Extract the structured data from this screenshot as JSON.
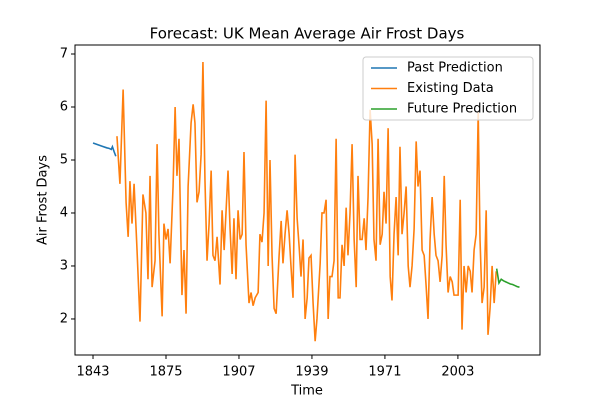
{
  "chart_data": {
    "type": "line",
    "title": "Forecast: UK Mean Average Air Frost Days",
    "xlabel": "Time",
    "ylabel": "Air Frost Days",
    "xlim": [
      1835.1,
      2039
    ],
    "ylim": [
      1.32,
      7.17
    ],
    "xticks": [
      1843,
      1875,
      1907,
      1939,
      1971,
      2003
    ],
    "yticks": [
      2,
      3,
      4,
      5,
      6,
      7
    ],
    "legend": "upper right",
    "series": [
      {
        "name": "Past Prediction",
        "color": "#1f77b4",
        "x": [
          1843,
          1845,
          1847,
          1849,
          1850,
          1851,
          1851.5,
          1852.3,
          1853
        ],
        "values": [
          5.32,
          5.29,
          5.26,
          5.23,
          5.22,
          5.2,
          5.25,
          5.15,
          5.07
        ]
      },
      {
        "name": "Existing Data",
        "color": "#ff7f0e",
        "x": [
          1853.5,
          1854.8,
          1856.2,
          1857.5,
          1858.4,
          1859.2,
          1860.1,
          1861.0,
          1862.3,
          1863.6,
          1864.9,
          1866.2,
          1867.1,
          1868.0,
          1868.9,
          1870.2,
          1871.1,
          1871.9,
          1873.3,
          1874.1,
          1875.0,
          1875.9,
          1876.8,
          1878.1,
          1879.0,
          1879.8,
          1880.7,
          1882.0,
          1882.9,
          1883.8,
          1884.7,
          1886.0,
          1886.9,
          1887.7,
          1888.6,
          1889.5,
          1890.4,
          1891.2,
          1892.1,
          1893.0,
          1893.9,
          1894.8,
          1895.6,
          1896.5,
          1897.4,
          1898.7,
          1899.6,
          1900.5,
          1901.3,
          1902.2,
          1903.1,
          1904.0,
          1904.8,
          1905.7,
          1906.6,
          1907.5,
          1908.4,
          1909.2,
          1910.1,
          1911.4,
          1912.3,
          1913.2,
          1914.1,
          1915.4,
          1916.2,
          1917.1,
          1918.0,
          1918.9,
          1919.8,
          1920.6,
          1921.5,
          1922.4,
          1923.3,
          1924.6,
          1925.5,
          1926.3,
          1927.2,
          1928.1,
          1929.0,
          1929.8,
          1930.7,
          1931.6,
          1932.5,
          1933.4,
          1934.2,
          1935.1,
          1936.0,
          1936.9,
          1937.7,
          1938.6,
          1939.5,
          1940.4,
          1941.2,
          1942.6,
          1943.4,
          1944.3,
          1945.2,
          1946.1,
          1946.9,
          1947.8,
          1948.7,
          1949.6,
          1950.5,
          1951.3,
          1952.2,
          1953.1,
          1954.0,
          1954.8,
          1955.7,
          1956.6,
          1957.5,
          1958.4,
          1959.2,
          1960.1,
          1961.0,
          1961.9,
          1962.7,
          1963.6,
          1964.5,
          1965.4,
          1966.2,
          1967.1,
          1968.0,
          1968.9,
          1969.8,
          1970.6,
          1971.5,
          1972.4,
          1973.3,
          1974.1,
          1975.0,
          1975.9,
          1976.8,
          1977.6,
          1978.5,
          1979.4,
          1980.3,
          1981.2,
          1982.0,
          1982.9,
          1983.8,
          1984.7,
          1985.5,
          1986.4,
          1987.3,
          1988.2,
          1989.1,
          1989.9,
          1990.8,
          1991.7,
          1992.6,
          1993.4,
          1994.3,
          1995.2,
          1996.1,
          1997.0,
          1997.8,
          1998.7,
          1999.6,
          2000.5,
          2001.3,
          2002.2,
          2003.1,
          2004.0,
          2004.8,
          2005.7,
          2006.6,
          2007.5,
          2008.4,
          2009.2,
          2010.1,
          2011.0,
          2011.9,
          2012.7,
          2013.6,
          2014.5,
          2015.4,
          2016.2,
          2017.1,
          2018.0,
          2018.9,
          2019.8
        ],
        "values": [
          5.45,
          4.55,
          6.33,
          4.2,
          3.55,
          4.6,
          3.8,
          4.55,
          3.3,
          1.95,
          4.35,
          4.0,
          2.75,
          4.7,
          2.6,
          3.1,
          5.3,
          3.6,
          2.05,
          3.8,
          3.5,
          3.7,
          3.05,
          4.5,
          6.0,
          4.7,
          5.4,
          2.45,
          3.3,
          2.1,
          4.5,
          5.7,
          6.05,
          5.7,
          4.2,
          4.4,
          5.1,
          6.85,
          4.6,
          3.1,
          3.8,
          4.8,
          3.2,
          3.1,
          3.55,
          2.65,
          4.05,
          3.3,
          4.0,
          4.8,
          3.7,
          2.85,
          3.9,
          2.75,
          4.05,
          3.5,
          3.6,
          5.15,
          3.4,
          2.3,
          2.5,
          2.25,
          2.4,
          2.5,
          3.6,
          3.45,
          4.0,
          6.12,
          3.0,
          5.0,
          3.2,
          2.2,
          2.1,
          3.2,
          3.85,
          3.05,
          3.6,
          4.05,
          3.6,
          3.0,
          2.4,
          5.1,
          3.9,
          3.35,
          2.8,
          3.5,
          2.0,
          2.4,
          3.15,
          3.2,
          2.3,
          1.58,
          2.0,
          3.05,
          4.0,
          4.0,
          4.25,
          2.0,
          2.8,
          2.8,
          3.1,
          5.4,
          2.4,
          2.4,
          3.4,
          3.0,
          4.1,
          3.2,
          4.0,
          5.3,
          3.5,
          2.6,
          4.7,
          3.5,
          3.5,
          3.9,
          3.3,
          4.3,
          5.95,
          5.3,
          3.5,
          3.1,
          5.4,
          3.4,
          3.6,
          4.4,
          3.8,
          5.6,
          2.8,
          2.35,
          3.6,
          4.3,
          3.2,
          5.25,
          3.6,
          4.0,
          4.5,
          3.0,
          2.6,
          3.0,
          3.7,
          5.35,
          4.5,
          4.8,
          3.3,
          3.2,
          2.6,
          2.0,
          3.5,
          4.3,
          3.6,
          3.2,
          3.1,
          2.7,
          3.2,
          4.7,
          3.4,
          2.5,
          2.8,
          2.7,
          2.45,
          2.45,
          2.45,
          4.25,
          1.8,
          3.0,
          2.5,
          3.0,
          2.9,
          2.5,
          3.3,
          3.6,
          5.9,
          3.5,
          2.3,
          2.6,
          4.05,
          1.7,
          2.2,
          3.0,
          2.3,
          2.9
        ]
      },
      {
        "name": "Future Prediction",
        "color": "#2ca02c",
        "x": [
          2020,
          2021,
          2022,
          2023,
          2024,
          2025,
          2026,
          2027,
          2028,
          2029,
          2030
        ],
        "values": [
          2.95,
          2.68,
          2.75,
          2.72,
          2.7,
          2.68,
          2.66,
          2.65,
          2.63,
          2.61,
          2.6
        ]
      }
    ]
  }
}
